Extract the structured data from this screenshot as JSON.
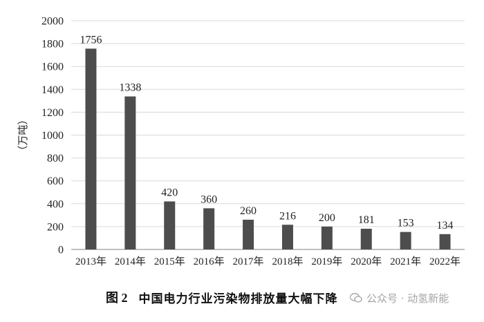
{
  "chart_data": {
    "type": "bar",
    "title": "中国电力行业污染物排放量大幅下降",
    "figure_label": "图 2",
    "ylabel": "（万吨）",
    "xlabel": "",
    "ylim": [
      0,
      2000
    ],
    "yticks": [
      0,
      200,
      400,
      600,
      800,
      1000,
      1200,
      1400,
      1600,
      1800,
      2000
    ],
    "grid": true,
    "legend": "none",
    "bar_color": "#4d4d4d",
    "categories": [
      "2013年",
      "2014年",
      "2015年",
      "2016年",
      "2017年",
      "2018年",
      "2019年",
      "2020年",
      "2021年",
      "2022年"
    ],
    "series": [
      {
        "values": [
          1756,
          1338,
          420,
          360,
          260,
          216,
          200,
          181,
          153,
          134
        ]
      }
    ]
  },
  "watermark": {
    "text": "公众号 · 动氢新能",
    "icon": "wechat-icon"
  }
}
